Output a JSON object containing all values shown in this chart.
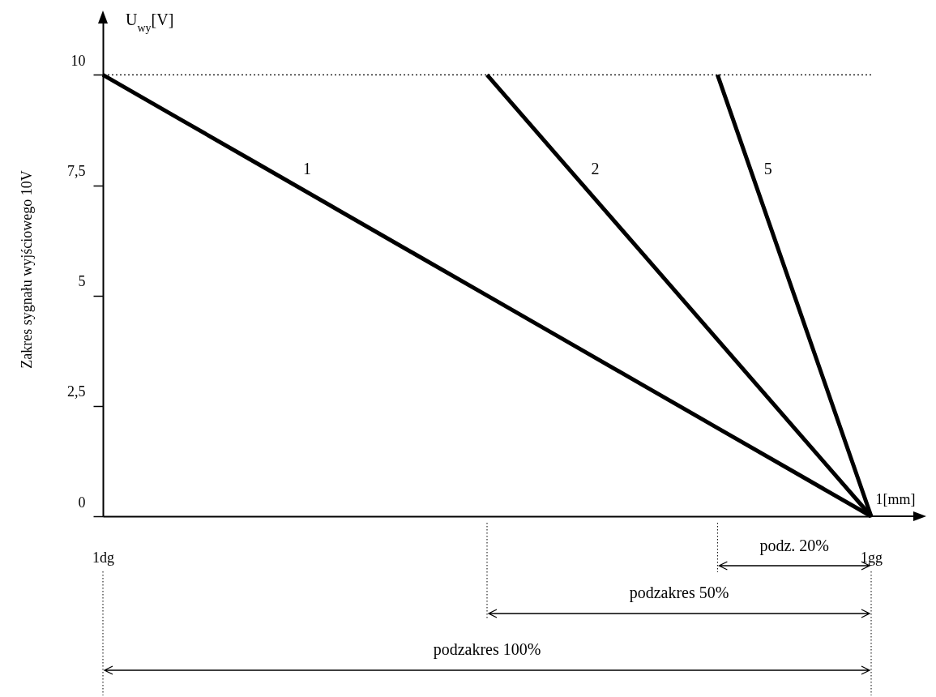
{
  "chart_data": {
    "type": "line",
    "ylabel": "Zakres sygnału  wyjściowego 10V",
    "xlabel": "1[mm]",
    "categories": [
      "1dg",
      null,
      null,
      null,
      null,
      null,
      null,
      null,
      null,
      null,
      "1gg"
    ],
    "ylim": [
      0,
      11.2
    ],
    "yticks": [
      0,
      {
        "value": 2.5,
        "label": "2,5"
      },
      5,
      {
        "value": 7.5,
        "label": "7,5"
      },
      10
    ],
    "series": [
      {
        "name": "1",
        "color": "#000000",
        "values": [
          10,
          9,
          8,
          7,
          6,
          5,
          4,
          3,
          2,
          1,
          0
        ]
      },
      {
        "name": "2",
        "color": "#000000",
        "values": [
          null,
          null,
          null,
          null,
          null,
          10,
          8,
          6,
          4,
          2,
          0
        ]
      },
      {
        "name": "5",
        "color": "#000000",
        "values": [
          null,
          null,
          null,
          null,
          null,
          null,
          null,
          null,
          10,
          5,
          0
        ]
      }
    ],
    "ref_lines": [
      {
        "axis": "y",
        "value": 10,
        "line_style": "dotted",
        "color": "#000000"
      }
    ],
    "annotations": [
      "U$_{wy}$[V]",
      "podz. 20%",
      "podzakres 50%",
      "podzakres 100%"
    ],
    "legend": false,
    "grid": false,
    "marker": "none",
    "line_style": "solid"
  }
}
